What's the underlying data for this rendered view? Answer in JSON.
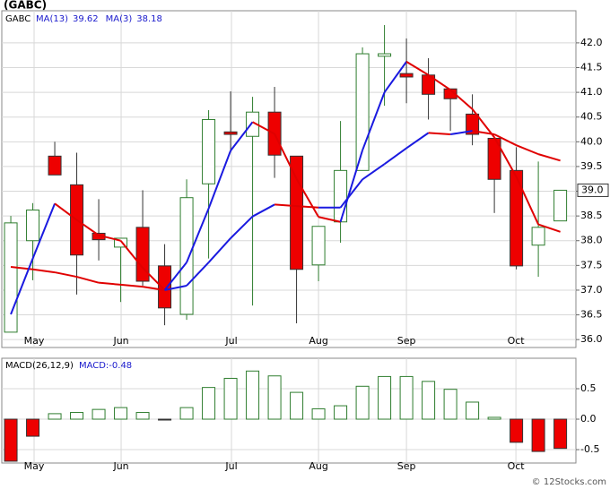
{
  "chart_data": [
    {
      "type": "candlestick",
      "title": "(GABC)",
      "symbol": "GABC",
      "x": [
        0,
        1,
        2,
        3,
        4,
        5,
        6,
        7,
        8,
        9,
        10,
        11,
        12,
        13,
        14,
        15,
        16,
        17,
        18,
        19,
        20,
        21,
        22,
        23,
        24,
        25
      ],
      "xlim": [
        -0.41,
        25.71
      ],
      "xticks": [
        {
          "value": 1.06,
          "label": "May"
        },
        {
          "value": 5.02,
          "label": "Jun"
        },
        {
          "value": 10.04,
          "label": "Jul"
        },
        {
          "value": 14.0,
          "label": "Aug"
        },
        {
          "value": 18.0,
          "label": "Sep"
        },
        {
          "value": 22.98,
          "label": "Oct"
        }
      ],
      "open": [
        36.15,
        38.0,
        39.71,
        39.13,
        38.15,
        37.87,
        38.27,
        37.49,
        36.51,
        39.15,
        40.2,
        40.11,
        40.6,
        39.71,
        37.51,
        38.38,
        39.42,
        41.73,
        41.38,
        41.35,
        41.07,
        40.56,
        40.07,
        39.42,
        37.91,
        38.4
      ],
      "high": [
        38.5,
        38.76,
        40.0,
        39.78,
        38.84,
        38.05,
        39.02,
        37.93,
        39.24,
        40.64,
        41.02,
        40.91,
        41.11,
        39.71,
        38.29,
        40.42,
        41.91,
        42.36,
        42.09,
        41.69,
        41.07,
        40.96,
        40.07,
        39.89,
        39.6,
        39.02
      ],
      "low": [
        36.15,
        37.2,
        39.33,
        36.91,
        37.6,
        36.76,
        37.09,
        36.29,
        36.4,
        37.64,
        39.82,
        36.69,
        39.27,
        36.33,
        37.18,
        37.96,
        39.42,
        40.73,
        40.78,
        40.45,
        40.22,
        39.93,
        38.56,
        37.42,
        37.27,
        38.4
      ],
      "close": [
        38.36,
        38.62,
        39.33,
        37.71,
        38.02,
        38.05,
        37.18,
        36.64,
        38.87,
        40.45,
        40.15,
        40.6,
        39.73,
        37.42,
        38.29,
        39.42,
        41.78,
        41.78,
        41.31,
        40.96,
        40.87,
        40.15,
        39.24,
        37.49,
        38.27,
        39.02
      ],
      "last_label": "39.0",
      "ylim": [
        35.84,
        42.65
      ],
      "yticks": [
        {
          "value": 36,
          "label": "36.0"
        },
        36.5,
        {
          "value": 37,
          "label": "37.0"
        },
        37.5,
        {
          "value": 38,
          "label": "38.0"
        },
        38.5,
        {
          "value": 39,
          "label": "39.0"
        },
        39.5,
        {
          "value": 40,
          "label": "40.0"
        },
        40.5,
        {
          "value": 41,
          "label": "41.0"
        },
        41.5,
        {
          "value": 42,
          "label": "42.0"
        }
      ],
      "grid": true,
      "up_color": "#2e7d2e",
      "down_color": "#ee0000",
      "series": [
        {
          "name": "MA(13)",
          "legend_value": 39.62,
          "rising_color": "#1a1ae0",
          "falling_color": "#e00000",
          "values": [
            37.47,
            37.42,
            37.36,
            37.27,
            37.15,
            37.11,
            37.07,
            37.0,
            37.09,
            37.56,
            38.05,
            38.49,
            38.73,
            38.7,
            38.67,
            38.67,
            39.24,
            39.55,
            39.87,
            40.18,
            40.15,
            40.22,
            40.15,
            39.93,
            39.75,
            39.62
          ]
        },
        {
          "name": "MA(3)",
          "legend_value": 38.18,
          "rising_color": "#1a1ae0",
          "falling_color": "#e00000",
          "values": [
            36.51,
            37.64,
            38.75,
            38.42,
            38.11,
            38.0,
            37.45,
            37.0,
            37.56,
            38.65,
            39.82,
            40.4,
            40.16,
            39.25,
            38.48,
            38.38,
            39.83,
            41.0,
            41.62,
            41.35,
            41.05,
            40.66,
            40.09,
            39.29,
            38.33,
            38.18
          ]
        }
      ],
      "watermark": "© 12Stocks.com"
    },
    {
      "type": "bar",
      "title": "MACD(26,12,9)",
      "value_label": "MACD:-0.48",
      "x": [
        0,
        1,
        2,
        3,
        4,
        5,
        6,
        7,
        8,
        9,
        10,
        11,
        12,
        13,
        14,
        15,
        16,
        17,
        18,
        19,
        20,
        21,
        22,
        23,
        24,
        25
      ],
      "xlim": [
        -0.41,
        25.71
      ],
      "xticks": [
        {
          "value": 1.06,
          "label": "May"
        },
        {
          "value": 5.02,
          "label": "Jun"
        },
        {
          "value": 10.04,
          "label": "Jul"
        },
        {
          "value": 14.0,
          "label": "Aug"
        },
        {
          "value": 18.0,
          "label": "Sep"
        },
        {
          "value": 22.98,
          "label": "Oct"
        }
      ],
      "values": [
        -0.69,
        -0.28,
        0.09,
        0.11,
        0.16,
        0.19,
        0.11,
        -0.01,
        0.19,
        0.52,
        0.67,
        0.79,
        0.71,
        0.44,
        0.17,
        0.22,
        0.54,
        0.7,
        0.7,
        0.62,
        0.49,
        0.28,
        0.03,
        -0.38,
        -0.53,
        -0.48
      ],
      "ylim": [
        -0.72,
        1.0
      ],
      "yticks": [
        -0.5,
        {
          "value": 0,
          "label": "0.0"
        },
        0.5
      ],
      "grid": true,
      "up_color": "#2e7d2e",
      "down_color": "#ee0000"
    }
  ]
}
